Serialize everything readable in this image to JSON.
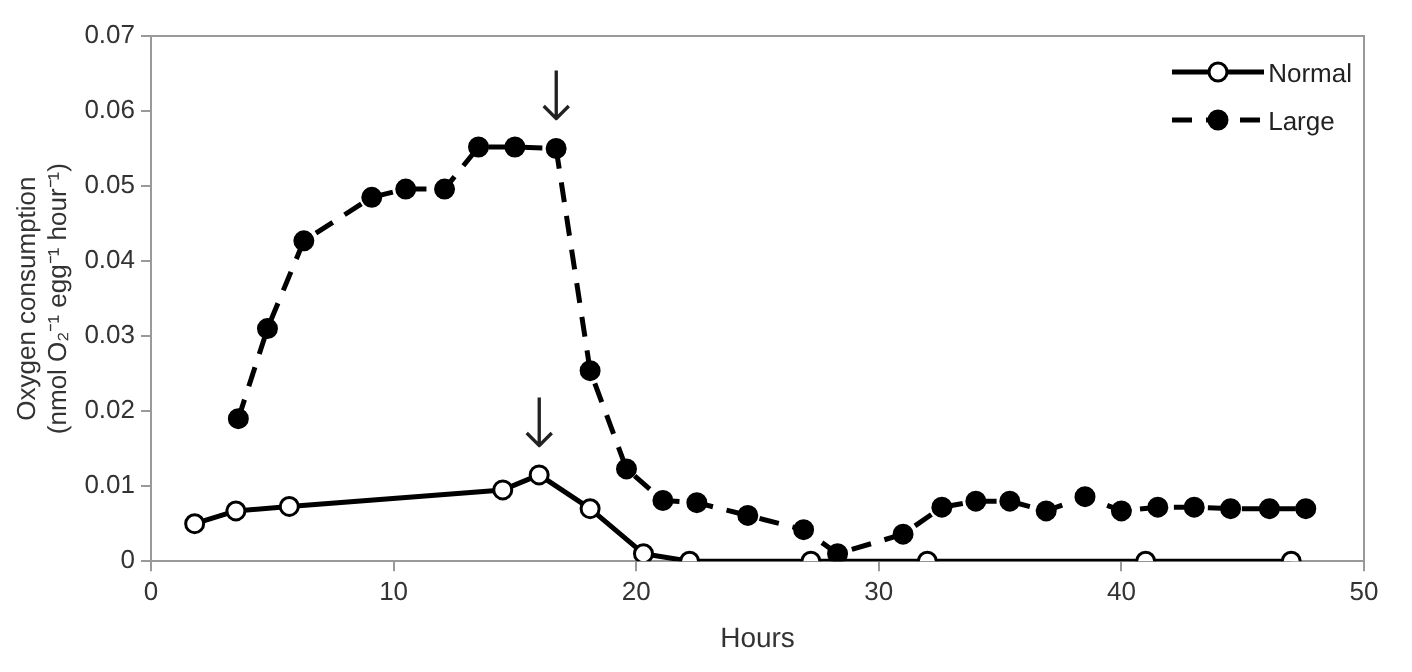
{
  "chart_data": {
    "type": "line",
    "xlabel": "Hours",
    "ylabel": "Oxygen consumption\n(nmol O₂⁻¹ egg⁻¹ hour⁻¹)",
    "xlim": [
      0,
      50
    ],
    "xticks": [
      0,
      10,
      20,
      30,
      40,
      50
    ],
    "ylim": [
      0,
      0.07
    ],
    "yticks": [
      0,
      0.01,
      0.02,
      0.03,
      0.04,
      0.05,
      0.06,
      0.07
    ],
    "grid": false,
    "legend": "top right",
    "marker": "circle",
    "series": [
      {
        "name": "Normal",
        "color": "#000000",
        "line_style": "solid",
        "x": [
          1.8,
          3.5,
          5.7,
          14.5,
          16.0,
          18.1,
          20.3,
          22.2,
          27.2,
          32.0,
          41.0,
          47.0
        ],
        "values": [
          0.005,
          0.0067,
          0.0073,
          0.0095,
          0.0115,
          0.007,
          0.001,
          0,
          0,
          0,
          0,
          0
        ]
      },
      {
        "name": "Large",
        "color": "#000000",
        "line_style": "dashed",
        "x": [
          3.6,
          4.8,
          6.3,
          9.1,
          10.5,
          12.1,
          13.5,
          15.0,
          16.7,
          18.1,
          19.6,
          21.1,
          22.5,
          24.6,
          26.9,
          28.3,
          31.0,
          32.6,
          34.0,
          35.4,
          36.9,
          38.5,
          40.0,
          41.5,
          43.0,
          44.5,
          46.1,
          47.6
        ],
        "values": [
          0.019,
          0.031,
          0.0427,
          0.0485,
          0.0496,
          0.0496,
          0.0552,
          0.0552,
          0.055,
          0.0254,
          0.0123,
          0.0081,
          0.0078,
          0.0061,
          0.0042,
          0.001,
          0.0036,
          0.0072,
          0.008,
          0.008,
          0.0067,
          0.0086,
          0.0067,
          0.0072,
          0.0072,
          0.007,
          0.007,
          0.007
        ]
      }
    ],
    "annotations": [
      {
        "text": "↓",
        "x": 16.0,
        "y": 0.0115
      },
      {
        "text": "↓",
        "x": 16.7,
        "y": 0.055
      }
    ]
  }
}
